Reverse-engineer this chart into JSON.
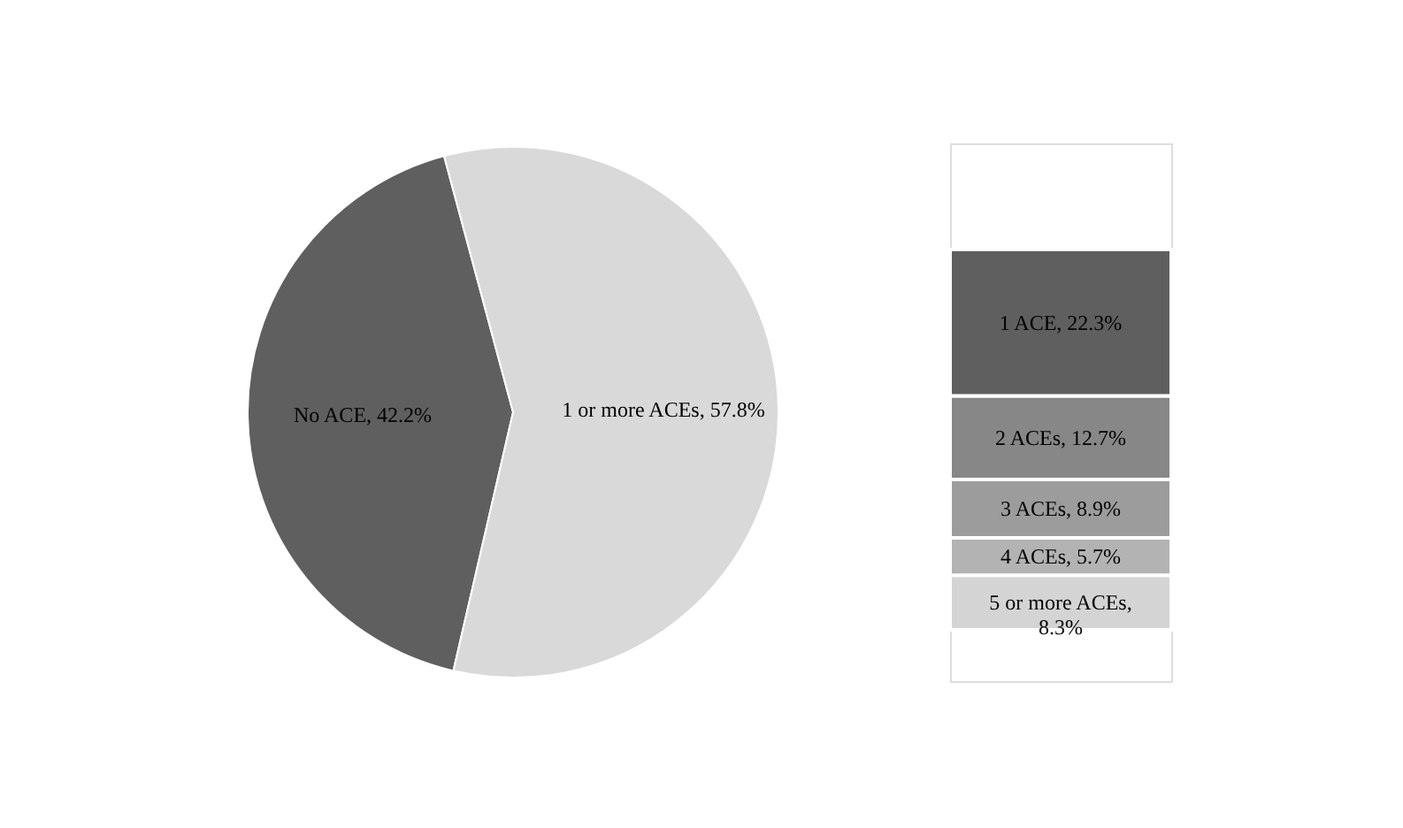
{
  "chart_data": [
    {
      "type": "pie",
      "categories": [
        "No ACE",
        "1 or more ACEs"
      ],
      "values": [
        42.2,
        57.8
      ],
      "colors": [
        "#5f5f5f",
        "#d9d9d9"
      ],
      "value_labels": [
        "42.2%",
        "57.8%"
      ]
    },
    {
      "type": "bar",
      "stacked": true,
      "categories": [
        null
      ],
      "series": [
        {
          "color": "#d4d4d4",
          "values": [
            8.3
          ],
          "value_labels": [
            "5 or more ACEs, 8.3%"
          ]
        },
        {
          "color": "#b3b3b3",
          "values": [
            5.7
          ],
          "value_labels": [
            "4 ACEs, 5.7%"
          ]
        },
        {
          "color": "#9c9c9c",
          "values": [
            8.9
          ],
          "value_labels": [
            "3 ACEs, 8.9%"
          ]
        },
        {
          "color": "#878787",
          "values": [
            12.7
          ],
          "value_labels": [
            "2 ACEs, 12.7%"
          ]
        },
        {
          "color": "#5f5f5f",
          "values": [
            22.3
          ],
          "value_labels": [
            "1 ACE, 22.3%"
          ]
        }
      ]
    }
  ]
}
